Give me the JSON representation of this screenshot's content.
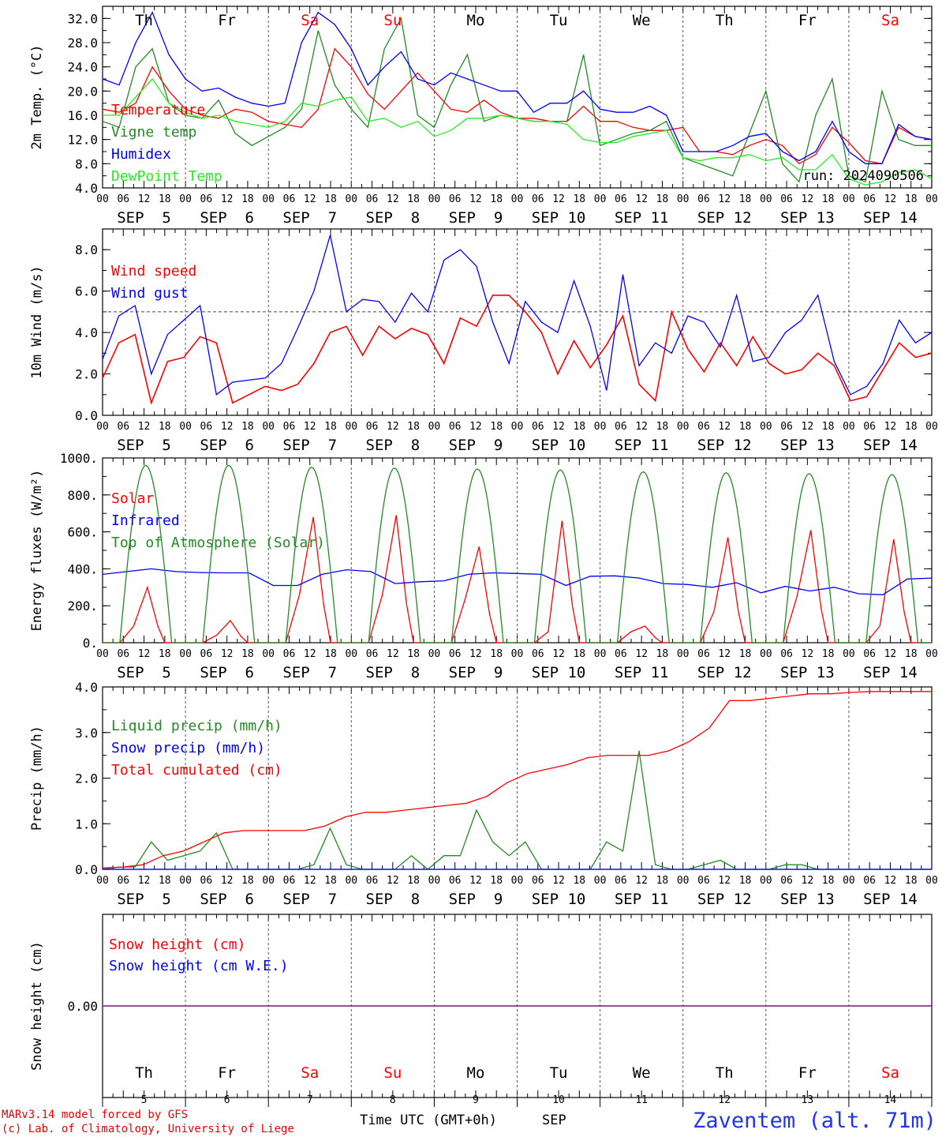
{
  "footer": {
    "model_line": "MARv3.14 model forced by GFS",
    "copyright_line": "(c) Lab. of Climatology, University of Liege",
    "time_label": "Time UTC (GMT+0h)",
    "month_label": "SEP",
    "station": "Zaventem (alt. 71m)"
  },
  "colors": {
    "red": "#ff0000",
    "green": "#228b22",
    "blue": "#0000ff",
    "lightgreen": "#22ee22",
    "purple": "#8b3a8b",
    "footer_red": "#ee0000",
    "station_blue": "#2233ee"
  },
  "days": [
    {
      "name": "Th",
      "date": "5",
      "weekend": false
    },
    {
      "name": "Fr",
      "date": "6",
      "weekend": false
    },
    {
      "name": "Sa",
      "date": "7",
      "weekend": true
    },
    {
      "name": "Su",
      "date": "8",
      "weekend": true
    },
    {
      "name": "Mo",
      "date": "9",
      "weekend": false
    },
    {
      "name": "Tu",
      "date": "10",
      "weekend": false
    },
    {
      "name": "We",
      "date": "11",
      "weekend": false
    },
    {
      "name": "Th",
      "date": "12",
      "weekend": false
    },
    {
      "name": "Fr",
      "date": "13",
      "weekend": false
    },
    {
      "name": "Sa",
      "date": "14",
      "weekend": true
    }
  ],
  "hour_labels": [
    "00",
    "06",
    "12",
    "18"
  ],
  "final_hour_label": "00",
  "date_labels": [
    "SEP  5",
    "SEP  6",
    "SEP  7",
    "SEP  8",
    "SEP  9",
    "SEP 10",
    "SEP 11",
    "SEP 12",
    "SEP 13",
    "SEP 14"
  ],
  "chart_data": [
    {
      "type": "line",
      "ylabel": "2m Temp. (°C)",
      "ylim": [
        4,
        34
      ],
      "yticks": [
        4,
        8,
        12,
        16,
        20,
        24,
        28,
        32
      ],
      "ytick_labels": [
        "4.0",
        "8.0",
        "12.0",
        "16.0",
        "20.0",
        "24.0",
        "28.0",
        "32.0"
      ],
      "annotation": "run: 2024090506",
      "x_hours_step": 6,
      "series": [
        {
          "name": "Temperature",
          "color": "red",
          "values": [
            17,
            16.5,
            18,
            24,
            20,
            17,
            16,
            15.5,
            17,
            16.5,
            15,
            14.5,
            14,
            17,
            27,
            24,
            19.5,
            17,
            20,
            23,
            20,
            17,
            16.5,
            18.5,
            16.5,
            15.5,
            15.5,
            15,
            15,
            17.5,
            15,
            15,
            14,
            13.5,
            13.5,
            14,
            10,
            10,
            9.5,
            11,
            12,
            11,
            8,
            9.5,
            14,
            11.5,
            8.5,
            8,
            14,
            12.5,
            12
          ]
        },
        {
          "name": "Vigne temp",
          "color": "green",
          "values": [
            15,
            14,
            24,
            27,
            18,
            16,
            15.5,
            18.5,
            13,
            11,
            12.5,
            14,
            17,
            30,
            21,
            17,
            14,
            27,
            32,
            16,
            14,
            21,
            26,
            15,
            16,
            15.5,
            15,
            15,
            15,
            26,
            11,
            12,
            13,
            13.5,
            15,
            9,
            8,
            7,
            6,
            13,
            20,
            8,
            5,
            16,
            22,
            6,
            5,
            20,
            12,
            11,
            11
          ]
        },
        {
          "name": "Humidex",
          "color": "blue",
          "values": [
            22,
            21,
            28,
            33,
            26,
            22,
            20,
            20.5,
            19,
            18,
            17.5,
            18,
            28,
            33,
            31,
            27,
            21,
            24,
            26.5,
            22,
            21,
            23,
            22,
            21,
            20,
            20,
            16.5,
            18,
            18,
            20,
            17,
            16.5,
            16.5,
            17.5,
            16,
            10,
            10,
            10,
            11,
            12.5,
            13,
            10,
            8.5,
            10,
            15,
            10,
            8,
            8,
            14.5,
            12.5,
            12
          ]
        },
        {
          "name": "DewPoint Temp",
          "color": "lightgreen",
          "values": [
            16,
            16,
            19,
            22,
            18,
            16.5,
            15.5,
            16,
            15,
            14.5,
            14,
            15,
            18,
            17.5,
            18.5,
            19,
            15,
            15.5,
            14,
            15,
            12.5,
            13.5,
            15.5,
            15.5,
            16,
            15.5,
            15,
            15,
            14.5,
            12,
            11.5,
            11.5,
            12.5,
            13,
            13.5,
            9,
            8.5,
            9,
            9,
            9.5,
            8.5,
            9,
            7,
            7,
            9.5,
            5.5,
            4.5,
            5,
            6.5,
            7,
            5.5
          ]
        }
      ]
    },
    {
      "type": "line",
      "ylabel": "10m Wind (m/s)",
      "ylim": [
        0,
        9
      ],
      "yticks": [
        0,
        2,
        4,
        6,
        8
      ],
      "ytick_labels": [
        "0.0",
        "2.0",
        "4.0",
        "6.0",
        "8.0"
      ],
      "reference_line": 5,
      "x_hours_step": 6,
      "series": [
        {
          "name": "Wind speed",
          "color": "red",
          "values": [
            1.8,
            3.5,
            3.9,
            0.6,
            2.6,
            2.8,
            3.8,
            3.5,
            0.6,
            1.0,
            1.4,
            1.2,
            1.5,
            2.5,
            4.0,
            4.3,
            2.9,
            4.3,
            3.7,
            4.2,
            3.9,
            2.5,
            4.7,
            4.3,
            5.8,
            5.8,
            5.0,
            4.0,
            2.0,
            3.6,
            2.3,
            3.4,
            4.8,
            1.5,
            0.7,
            5.0,
            3.2,
            2.1,
            3.5,
            2.4,
            3.8,
            2.5,
            2.0,
            2.2,
            3.0,
            2.4,
            0.7,
            0.9,
            2.2,
            3.5,
            2.8,
            3.0
          ]
        },
        {
          "name": "Wind gust",
          "color": "blue",
          "values": [
            2.7,
            4.8,
            5.3,
            2.0,
            3.9,
            4.6,
            5.3,
            1.0,
            1.6,
            1.7,
            1.8,
            2.5,
            4.2,
            6.0,
            8.7,
            5.0,
            5.6,
            5.5,
            4.5,
            5.9,
            5.0,
            7.5,
            8.0,
            7.2,
            4.5,
            2.5,
            5.5,
            4.5,
            4.0,
            6.5,
            4.3,
            1.2,
            6.8,
            2.4,
            3.5,
            3.0,
            4.8,
            4.5,
            3.3,
            5.8,
            2.6,
            2.8,
            4.0,
            4.6,
            5.8,
            2.6,
            1.0,
            1.4,
            2.5,
            4.6,
            3.5,
            4.0
          ]
        }
      ]
    },
    {
      "type": "line",
      "ylabel": "Energy fluxes (W/m²)",
      "ylim": [
        0,
        1000
      ],
      "yticks": [
        0,
        200,
        400,
        600,
        800,
        1000
      ],
      "ytick_labels": [
        "0.",
        "200.",
        "400.",
        "600.",
        "800.",
        "1000."
      ],
      "x_hours_step": 6,
      "series": [
        {
          "name": "Solar",
          "color": "red",
          "day_values": [
            [
              0,
              90,
              300,
              0
            ],
            [
              0,
              40,
              120,
              0
            ],
            [
              0,
              260,
              680,
              0
            ],
            [
              0,
              260,
              690,
              0
            ],
            [
              0,
              240,
              520,
              0
            ],
            [
              0,
              60,
              660,
              0
            ],
            [
              0,
              60,
              90,
              0
            ],
            [
              0,
              170,
              570,
              0
            ],
            [
              0,
              250,
              610,
              0
            ],
            [
              0,
              90,
              560,
              0
            ]
          ]
        },
        {
          "name": "Infrared",
          "color": "blue",
          "values": [
            370,
            385,
            400,
            385,
            380,
            378,
            378,
            310,
            310,
            370,
            395,
            385,
            320,
            330,
            335,
            370,
            378,
            375,
            370,
            310,
            360,
            362,
            350,
            320,
            315,
            300,
            325,
            270,
            305,
            280,
            300,
            265,
            260,
            345,
            350
          ]
        },
        {
          "name": "Top of Atmosphere (Solar)",
          "color": "green",
          "day_peaks": [
            960,
            960,
            950,
            945,
            940,
            935,
            925,
            920,
            915,
            910
          ]
        }
      ]
    },
    {
      "type": "line",
      "ylabel": "Precip (mm/h)",
      "ylim": [
        0,
        4
      ],
      "yticks": [
        0,
        1,
        2,
        3,
        4
      ],
      "ytick_labels": [
        "0.0",
        "1.0",
        "2.0",
        "3.0",
        "4.0"
      ],
      "x_hours_step": 6,
      "series": [
        {
          "name": "Liquid precip (mm/h)",
          "color": "green",
          "values": [
            0,
            0.05,
            0.05,
            0.6,
            0.2,
            0.3,
            0.4,
            0.8,
            0,
            0,
            0,
            0,
            0,
            0.1,
            0.9,
            0.1,
            0,
            0,
            0,
            0.3,
            0,
            0.3,
            0.3,
            1.3,
            0.6,
            0.3,
            0.6,
            0,
            0,
            0,
            0,
            0.6,
            0.4,
            2.6,
            0.1,
            0,
            0,
            0.1,
            0.2,
            0,
            0,
            0,
            0.1,
            0.1,
            0,
            0,
            0,
            0,
            0,
            0,
            0,
            0
          ]
        },
        {
          "name": "Snow precip (mm/h)",
          "color": "blue",
          "values": [
            0,
            0
          ]
        },
        {
          "name": "Total cumulated (cm)",
          "color": "red",
          "values": [
            0.03,
            0.05,
            0.1,
            0.3,
            0.4,
            0.6,
            0.8,
            0.85,
            0.85,
            0.85,
            0.85,
            0.95,
            1.15,
            1.25,
            1.25,
            1.3,
            1.35,
            1.4,
            1.45,
            1.6,
            1.9,
            2.1,
            2.2,
            2.3,
            2.45,
            2.5,
            2.5,
            2.5,
            2.6,
            2.8,
            3.1,
            3.7,
            3.7,
            3.75,
            3.8,
            3.85,
            3.85,
            3.88,
            3.9,
            3.9,
            3.9,
            3.9
          ]
        }
      ]
    },
    {
      "type": "line",
      "ylabel": "Snow height (cm)",
      "ylim": [
        -1,
        1
      ],
      "yticks": [
        0
      ],
      "ytick_labels": [
        "0.00"
      ],
      "series": [
        {
          "name": "Snow height (cm)",
          "color": "red",
          "values": [
            0,
            0
          ]
        },
        {
          "name": "Snow height (cm W.E.)",
          "color": "blue",
          "values": [
            0,
            0
          ]
        }
      ]
    }
  ]
}
